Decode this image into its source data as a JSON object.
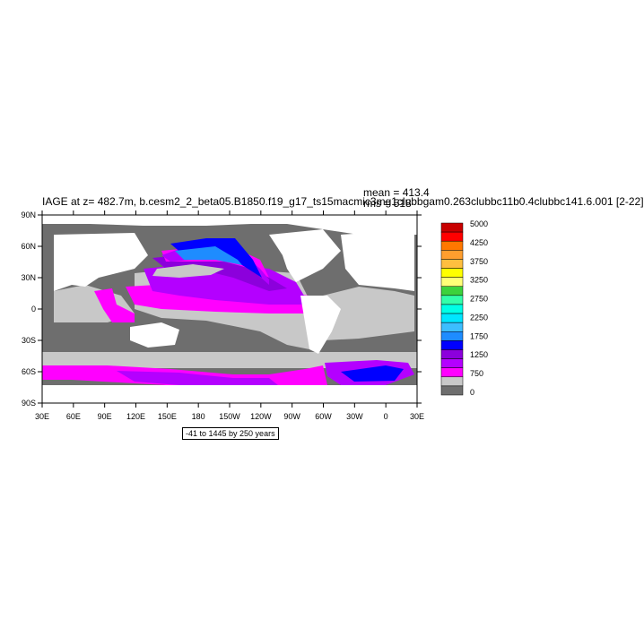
{
  "title": "IAGE at z= 482.7m, b.cesm2_2_beta05.B1850.f19_g17_ts15macmic3mg1clubbgam0.263clubbc11b0.4clubbc141.6.001 [2-22]",
  "stats": {
    "mean": "mean = 413.4",
    "rms": "rms = 518"
  },
  "contour_info": "-41 to 1445 by 250 years",
  "axes": {
    "lon_ticks": [
      "30E",
      "60E",
      "90E",
      "120E",
      "150E",
      "180",
      "150W",
      "120W",
      "90W",
      "60W",
      "30W",
      "0",
      "30E"
    ],
    "lat_ticks": [
      "90N",
      "60N",
      "30N",
      "0",
      "30S",
      "60S",
      "90S"
    ]
  },
  "colorbar": {
    "labels": [
      "5000",
      "4250",
      "3750",
      "3250",
      "2750",
      "2250",
      "1750",
      "1250",
      "750",
      "0"
    ],
    "colors": [
      "#c80000",
      "#ff0000",
      "#ff7800",
      "#ff9e2e",
      "#ffbf3f",
      "#ffff00",
      "#ffff78",
      "#3cd23c",
      "#33ffaa",
      "#00ffe6",
      "#00e6ff",
      "#3cbeff",
      "#1e8cff",
      "#0000ff",
      "#8c00dc",
      "#b400ff",
      "#ff00ff",
      "#c8c8c8",
      "#6e6e6e"
    ]
  },
  "colors": {
    "land": "#ffffff",
    "ocean_dark": "#6e6e6e",
    "ocean_light": "#c8c8c8",
    "magenta": "#ff00ff",
    "violet": "#b400ff",
    "purple": "#8c00dc",
    "blue": "#0000ff",
    "azure": "#1e8cff"
  }
}
